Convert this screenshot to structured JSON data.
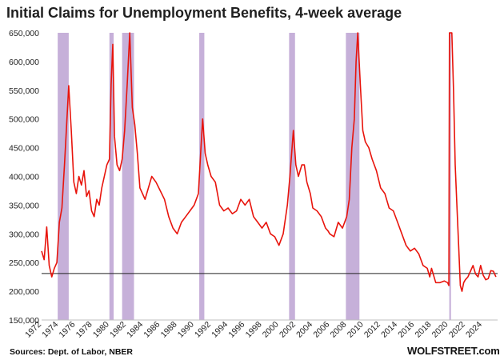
{
  "chart_data": {
    "type": "line",
    "title": "Initial Claims for Unemployment Benefits, 4-week average",
    "source": "Sources: Dept. of Labor, NBER",
    "brand": "WOLFSTREET.com",
    "xlabel": "",
    "ylabel": "",
    "xlim": [
      1972.0,
      2025.8
    ],
    "ylim": [
      150000,
      650000
    ],
    "x_ticks": [
      1972,
      1974,
      1976,
      1978,
      1980,
      1982,
      1984,
      1986,
      1988,
      1990,
      1992,
      1994,
      1996,
      1998,
      2000,
      2002,
      2004,
      2006,
      2008,
      2010,
      2012,
      2014,
      2016,
      2018,
      2020,
      2022,
      2024
    ],
    "y_ticks": [
      150000,
      200000,
      250000,
      300000,
      350000,
      400000,
      450000,
      500000,
      550000,
      600000,
      650000
    ],
    "y_tick_labels": [
      "150,000",
      "200,000",
      "250,000",
      "300,000",
      "350,000",
      "400,000",
      "450,000",
      "500,000",
      "550,000",
      "600,000",
      "650,000"
    ],
    "reference_line": 231000,
    "recessions": [
      [
        1973.9,
        1975.2
      ],
      [
        1980.0,
        1980.5
      ],
      [
        1981.5,
        1982.9
      ],
      [
        1990.6,
        1991.2
      ],
      [
        2001.2,
        2001.9
      ],
      [
        2007.9,
        2009.5
      ],
      [
        2020.1,
        2020.3
      ]
    ],
    "series": [
      {
        "x": [
          1972.0,
          1972.3,
          1972.6,
          1972.9,
          1973.2,
          1973.5,
          1973.8,
          1974.1,
          1974.4,
          1974.7,
          1974.95,
          1975.2,
          1975.5,
          1975.8,
          1976.1,
          1976.4,
          1976.7,
          1977.0,
          1977.3,
          1977.6,
          1977.9,
          1978.2,
          1978.5,
          1978.8,
          1979.1,
          1979.4,
          1979.7,
          1980.0,
          1980.2,
          1980.4,
          1980.6,
          1980.9,
          1981.2,
          1981.5,
          1981.8,
          1982.1,
          1982.4,
          1982.7,
          1983.0,
          1983.3,
          1983.6,
          1983.9,
          1984.2,
          1984.6,
          1985.0,
          1985.5,
          1986.0,
          1986.5,
          1987.0,
          1987.5,
          1988.0,
          1988.5,
          1989.0,
          1989.5,
          1990.0,
          1990.5,
          1990.8,
          1991.0,
          1991.3,
          1991.6,
          1992.0,
          1992.5,
          1993.0,
          1993.5,
          1994.0,
          1994.5,
          1995.0,
          1995.5,
          1996.0,
          1996.5,
          1997.0,
          1997.5,
          1998.0,
          1998.5,
          1999.0,
          1999.5,
          2000.0,
          2000.5,
          2001.0,
          2001.3,
          2001.7,
          2002.0,
          2002.3,
          2002.7,
          2003.0,
          2003.3,
          2003.7,
          2004.0,
          2004.5,
          2005.0,
          2005.5,
          2005.8,
          2006.0,
          2006.5,
          2007.0,
          2007.5,
          2008.0,
          2008.3,
          2008.6,
          2008.9,
          2009.1,
          2009.3,
          2009.6,
          2009.9,
          2010.2,
          2010.6,
          2011.0,
          2011.5,
          2012.0,
          2012.5,
          2013.0,
          2013.5,
          2014.0,
          2014.5,
          2015.0,
          2015.5,
          2016.0,
          2016.5,
          2017.0,
          2017.5,
          2017.8,
          2018.0,
          2018.5,
          2019.0,
          2019.5,
          2019.9,
          2020.05,
          2020.12,
          2020.2,
          2020.4,
          2020.6,
          2020.8,
          2021.0,
          2021.2,
          2021.4,
          2021.6,
          2021.8,
          2022.0,
          2022.3,
          2022.6,
          2022.9,
          2023.2,
          2023.5,
          2023.8,
          2024.1,
          2024.4,
          2024.7,
          2025.0,
          2025.3,
          2025.6
        ],
        "values": [
          270000,
          255000,
          312000,
          245000,
          225000,
          240000,
          250000,
          320000,
          345000,
          420000,
          490000,
          558000,
          480000,
          390000,
          370000,
          400000,
          385000,
          410000,
          365000,
          375000,
          340000,
          330000,
          360000,
          350000,
          380000,
          400000,
          420000,
          430000,
          560000,
          630000,
          470000,
          420000,
          410000,
          430000,
          480000,
          560000,
          660000,
          520000,
          490000,
          440000,
          380000,
          370000,
          360000,
          380000,
          400000,
          390000,
          375000,
          360000,
          330000,
          310000,
          300000,
          320000,
          330000,
          340000,
          350000,
          370000,
          450000,
          500000,
          440000,
          420000,
          400000,
          390000,
          350000,
          340000,
          345000,
          335000,
          340000,
          360000,
          350000,
          360000,
          330000,
          320000,
          310000,
          320000,
          300000,
          295000,
          280000,
          300000,
          350000,
          400000,
          480000,
          420000,
          400000,
          420000,
          420000,
          390000,
          370000,
          345000,
          340000,
          330000,
          310000,
          305000,
          300000,
          295000,
          320000,
          310000,
          330000,
          360000,
          450000,
          500000,
          600000,
          660000,
          560000,
          480000,
          460000,
          450000,
          430000,
          410000,
          380000,
          370000,
          345000,
          340000,
          320000,
          300000,
          280000,
          270000,
          275000,
          265000,
          245000,
          240000,
          225000,
          240000,
          215000,
          215000,
          218000,
          215000,
          210000,
          660000,
          660000,
          660000,
          550000,
          420000,
          350000,
          280000,
          210000,
          200000,
          215000,
          220000,
          225000,
          235000,
          245000,
          230000,
          225000,
          245000,
          228000,
          220000,
          222000,
          236000,
          235000,
          225000
        ]
      }
    ]
  }
}
